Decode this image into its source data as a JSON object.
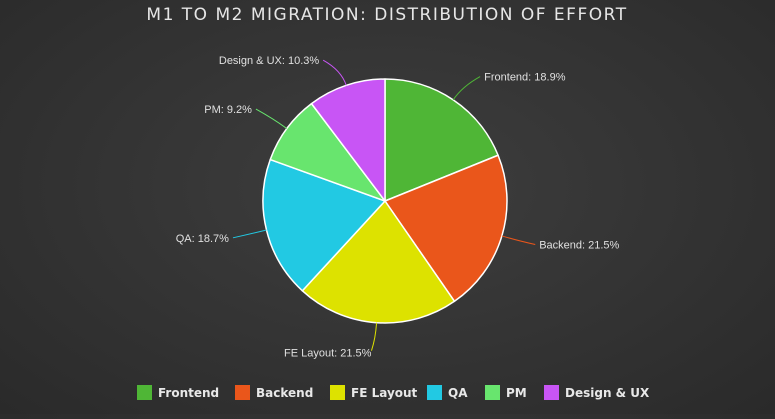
{
  "chart_data": {
    "type": "pie",
    "title": "M1 TO M2 MIGRATION: DISTRIBUTION OF EFFORT",
    "slices": [
      {
        "name": "Frontend",
        "value": 18.9,
        "label": "Frontend: 18.9%",
        "color": "#4fb636"
      },
      {
        "name": "Backend",
        "value": 21.5,
        "label": "Backend: 21.5%",
        "color": "#ea561b"
      },
      {
        "name": "FE Layout",
        "value": 21.5,
        "label": "FE Layout: 21.5%",
        "color": "#dde200"
      },
      {
        "name": "QA",
        "value": 18.7,
        "label": "QA: 18.7%",
        "color": "#22c9e3"
      },
      {
        "name": "PM",
        "value": 9.2,
        "label": "PM: 9.2%",
        "color": "#68e56e"
      },
      {
        "name": "Design & UX",
        "value": 10.3,
        "label": "Design & UX: 10.3%",
        "color": "#c855f5"
      }
    ],
    "legend": {
      "placement": "bottom",
      "items": [
        "Frontend",
        "Backend",
        "FE Layout",
        "QA",
        "PM",
        "Design & UX"
      ]
    }
  }
}
